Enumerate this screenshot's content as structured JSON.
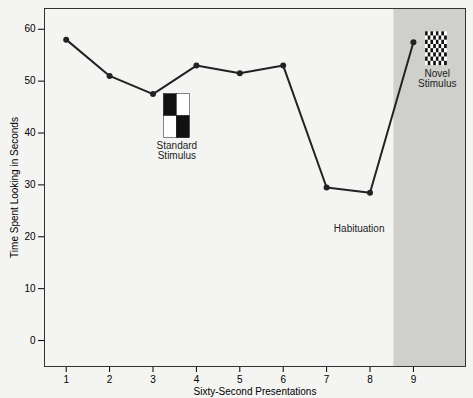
{
  "chart_data": {
    "type": "line",
    "x_label": "Sixty-Second Presentations",
    "y_label": "Time Spent Looking in Seconds",
    "x": [
      1,
      2,
      3,
      4,
      5,
      6,
      7,
      8,
      9
    ],
    "values": [
      58,
      51,
      47.5,
      53,
      51.5,
      53,
      29.5,
      28.5,
      57.5
    ],
    "color": "#222222",
    "marker": "circle",
    "xlim": [
      0.5,
      10.2
    ],
    "ylim": [
      -5,
      64
    ],
    "xticks": [
      1,
      2,
      3,
      4,
      5,
      6,
      7,
      8,
      9
    ],
    "yticks": [
      0,
      10,
      20,
      30,
      40,
      50,
      60
    ],
    "grid": false,
    "annotations": [
      "Standard Stimulus",
      "Habituation",
      "Novel Stimulus"
    ]
  }
}
